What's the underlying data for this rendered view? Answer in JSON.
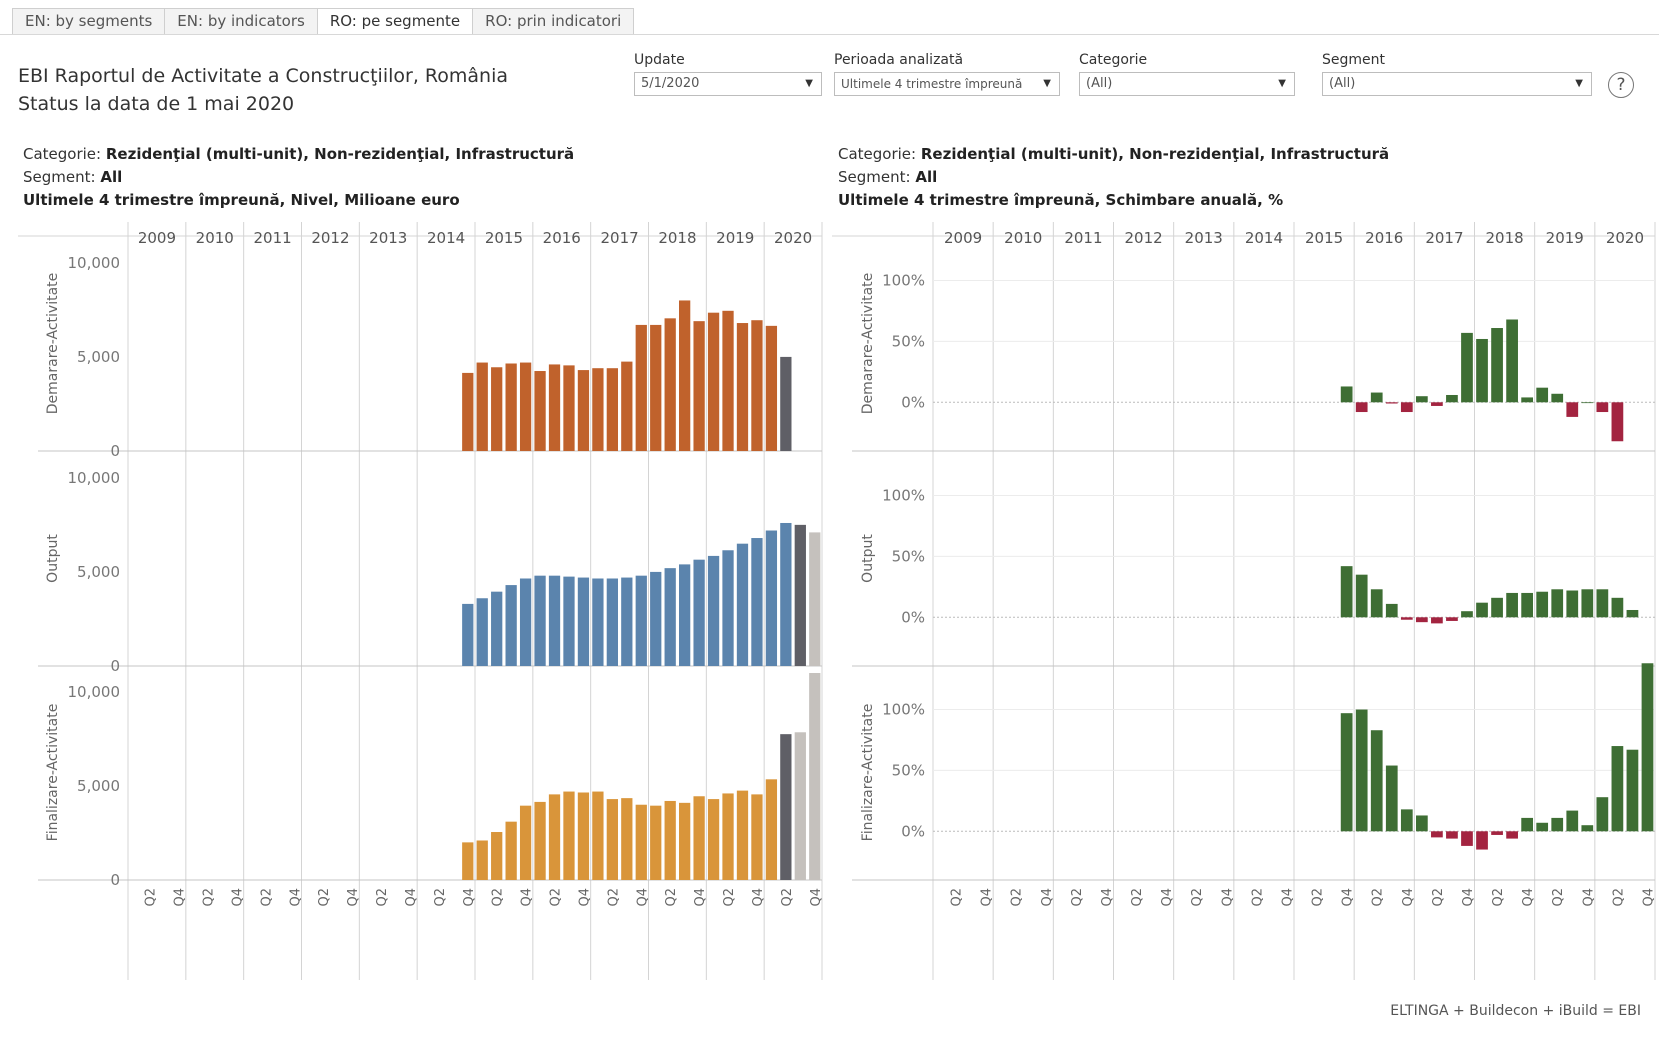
{
  "tabs": [
    {
      "label": "EN: by segments",
      "active": false
    },
    {
      "label": "EN: by indicators",
      "active": false
    },
    {
      "label": "RO: pe segmente",
      "active": true
    },
    {
      "label": "RO: prin indicatori",
      "active": false
    }
  ],
  "title": {
    "line1": "EBI Raportul de Activitate a Construcţiilor, România",
    "line2": "Status la data de 1 mai 2020"
  },
  "filters": {
    "update": {
      "label": "Update",
      "value": "5/1/2020"
    },
    "period": {
      "label": "Perioada analizată",
      "value": "Ultimele 4 trimestre împreună"
    },
    "category": {
      "label": "Categorie",
      "value": "(All)"
    },
    "segment": {
      "label": "Segment",
      "value": "(All)"
    }
  },
  "help_label": "?",
  "left_panel": {
    "categorie_label": "Categorie:",
    "categorie_value": "Rezidenţial (multi-unit), Non-rezidenţial, Infrastructură",
    "segment_label": "Segment:",
    "segment_value": "All",
    "measure": "Ultimele 4 trimestre  împreună, Nivel, Milioane euro"
  },
  "right_panel": {
    "categorie_label": "Categorie:",
    "categorie_value": "Rezidenţial (multi-unit), Non-rezidenţial, Infrastructură",
    "segment_label": "Segment:",
    "segment_value": "All",
    "measure": "Ultimele 4 trimestre  împreună, Schimbare anuală, %"
  },
  "footer": "ELTINGA + Buildecon + iBuild = EBI",
  "colors": {
    "starts": "#c0622c",
    "output": "#5b84ad",
    "completions": "#d9953a",
    "actual_q": "#5f5f66",
    "forecast": "#c5c1bd",
    "pos": "#3e6e34",
    "neg": "#a32440",
    "grid": "#d4d4d4"
  },
  "chart_data": [
    {
      "type": "bar",
      "title": "Ultimele 4 trimestre  împreună, Nivel, Milioane euro",
      "years": [
        "2009",
        "2010",
        "2011",
        "2012",
        "2013",
        "2014",
        "2015",
        "2016",
        "2017",
        "2018",
        "2019",
        "2020"
      ],
      "quarter_ticks": [
        "Q2",
        "Q4"
      ],
      "x_start": "2014Q4",
      "ylim": [
        0,
        11000
      ],
      "yticks": [
        "10,000",
        "5,000",
        "0"
      ],
      "ytick_values": [
        10000,
        5000,
        0
      ],
      "series": [
        {
          "name": "Demarare-Activitate",
          "color_key": "starts",
          "start_index": 23,
          "values": [
            4150,
            4700,
            4450,
            4650,
            4700,
            4250,
            4600,
            4550,
            4300,
            4400,
            4400,
            4750,
            6700,
            6700,
            7050,
            8000,
            6900,
            7350,
            7450,
            6800,
            6950,
            6650,
            5000
          ],
          "highlight": {
            "22": "actual_q"
          }
        },
        {
          "name": "Output",
          "color_key": "output",
          "start_index": 23,
          "values": [
            3300,
            3600,
            3950,
            4300,
            4650,
            4800,
            4800,
            4750,
            4700,
            4650,
            4650,
            4700,
            4800,
            5000,
            5200,
            5400,
            5650,
            5850,
            6150,
            6500,
            6800,
            7200,
            7600,
            7500,
            7100
          ],
          "highlight": {
            "23": "actual_q",
            "24": "forecast"
          }
        },
        {
          "name": "Finalizare-Activitate",
          "color_key": "completions",
          "start_index": 23,
          "values": [
            2000,
            2100,
            2550,
            3100,
            3950,
            4150,
            4550,
            4700,
            4650,
            4700,
            4300,
            4350,
            4000,
            3950,
            4200,
            4100,
            4450,
            4300,
            4600,
            4750,
            4550,
            5350,
            7750,
            7850,
            11000
          ],
          "highlight": {
            "22": "actual_q",
            "23": "forecast",
            "24": "forecast"
          }
        }
      ]
    },
    {
      "type": "bar",
      "title": "Ultimele 4 trimestre  împreună, Schimbare anuală, %",
      "years": [
        "2009",
        "2010",
        "2011",
        "2012",
        "2013",
        "2014",
        "2015",
        "2016",
        "2017",
        "2018",
        "2019",
        "2020"
      ],
      "quarter_ticks": [
        "Q2",
        "Q4"
      ],
      "x_start": "2015Q4",
      "ylim": [
        -40,
        130
      ],
      "yticks": [
        "100%",
        "50%",
        "0%"
      ],
      "ytick_values": [
        100,
        50,
        0
      ],
      "series": [
        {
          "name": "Demarare-Activitate",
          "start_index": 27,
          "values": [
            13,
            -8,
            8,
            -1,
            -8,
            5,
            -3,
            6,
            57,
            52,
            61,
            68,
            4,
            12,
            7,
            -12,
            0,
            -8,
            -32
          ]
        },
        {
          "name": "Output",
          "start_index": 27,
          "values": [
            42,
            35,
            23,
            11,
            -2,
            -4,
            -5,
            -3,
            5,
            12,
            16,
            20,
            20,
            21,
            23,
            22,
            23,
            23,
            16,
            6
          ]
        },
        {
          "name": "Finalizare-Activitate",
          "start_index": 27,
          "values": [
            97,
            100,
            83,
            54,
            18,
            13,
            -5,
            -6,
            -12,
            -15,
            -3,
            -6,
            11,
            7,
            11,
            17,
            5,
            28,
            70,
            67,
            138
          ]
        }
      ]
    }
  ]
}
